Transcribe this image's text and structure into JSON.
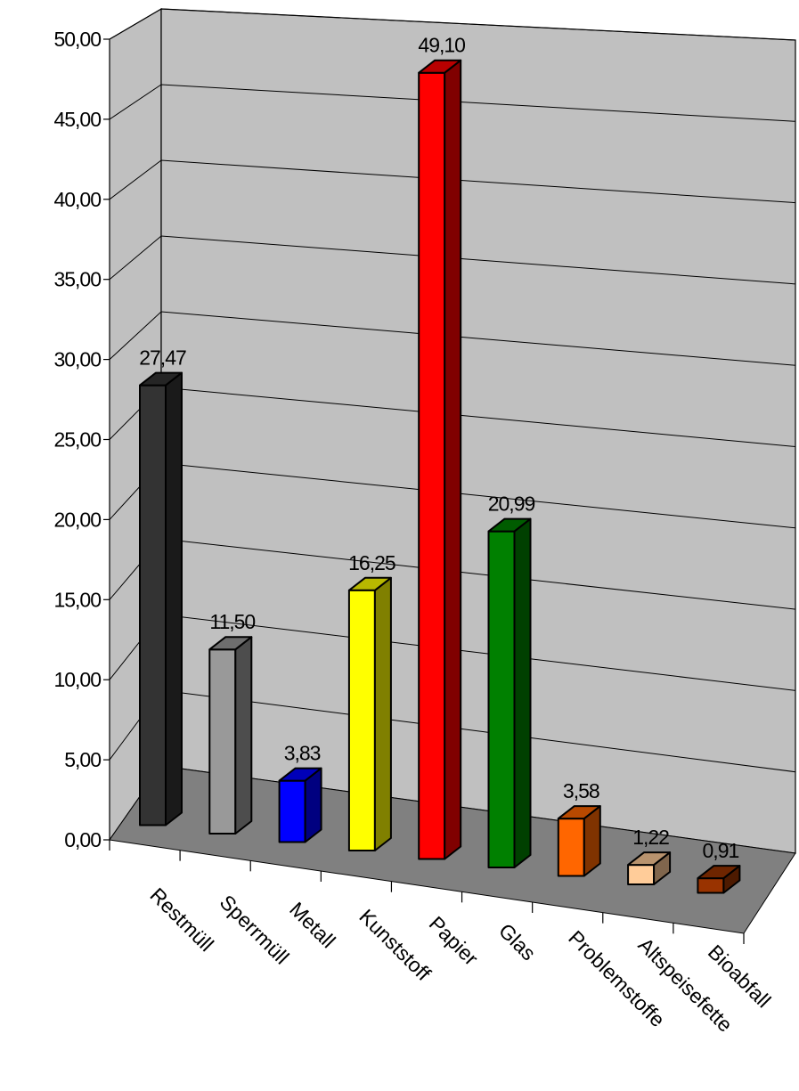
{
  "chart_data": {
    "type": "bar",
    "title": "",
    "xlabel": "",
    "ylabel": "",
    "ylim": [
      0,
      50
    ],
    "y_ticks": [
      "0,00",
      "5,00",
      "10,00",
      "15,00",
      "20,00",
      "25,00",
      "30,00",
      "35,00",
      "40,00",
      "45,00",
      "50,00"
    ],
    "grid": true,
    "legend": "none",
    "categories": [
      "Restmüll",
      "Sperrmüll",
      "Metall",
      "Kunststoff",
      "Papier",
      "Glas",
      "Problemstoffe",
      "Altspeisefette",
      "Bioabfall"
    ],
    "values": [
      27.47,
      11.5,
      3.83,
      16.25,
      49.1,
      20.99,
      3.58,
      1.22,
      0.91
    ],
    "value_labels": [
      "27,47",
      "11,50",
      "3,83",
      "16,25",
      "49,10",
      "20,99",
      "3,58",
      "1,22",
      "0,91"
    ],
    "colors": [
      "#333333",
      "#999999",
      "#0000ff",
      "#ffff00",
      "#ff0000",
      "#008000",
      "#ff6600",
      "#ffcc99",
      "#993300"
    ]
  }
}
